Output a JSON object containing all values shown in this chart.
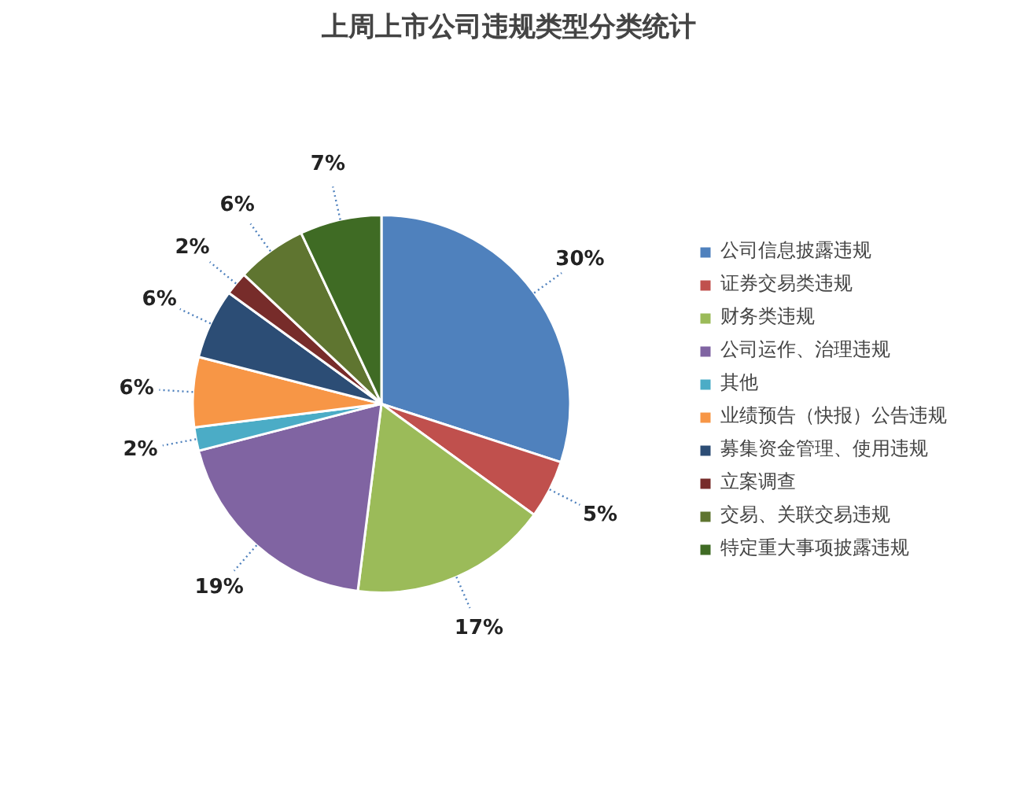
{
  "chart_data": {
    "type": "pie",
    "title": "上周上市公司违规类型分类统计",
    "categories": [
      "公司信息披露违规",
      "证券交易类违规",
      "财务类违规",
      "公司运作、治理违规",
      "其他",
      "业绩预告（快报）公告违规",
      "募集资金管理、使用违规",
      "立案调查",
      "交易、关联交易违规",
      "特定重大事项披露违规"
    ],
    "values": [
      30,
      5,
      17,
      19,
      2,
      6,
      6,
      2,
      6,
      7
    ],
    "value_labels": [
      "30%",
      "5%",
      "17%",
      "19%",
      "2%",
      "6%",
      "6%",
      "2%",
      "6%",
      "7%"
    ],
    "colors": [
      "#4f81bd",
      "#c0504d",
      "#9bbb59",
      "#8064a2",
      "#4bacc6",
      "#f79646",
      "#2c4d75",
      "#772c2a",
      "#5f7530",
      "#3f6b24"
    ],
    "legend": "right"
  }
}
